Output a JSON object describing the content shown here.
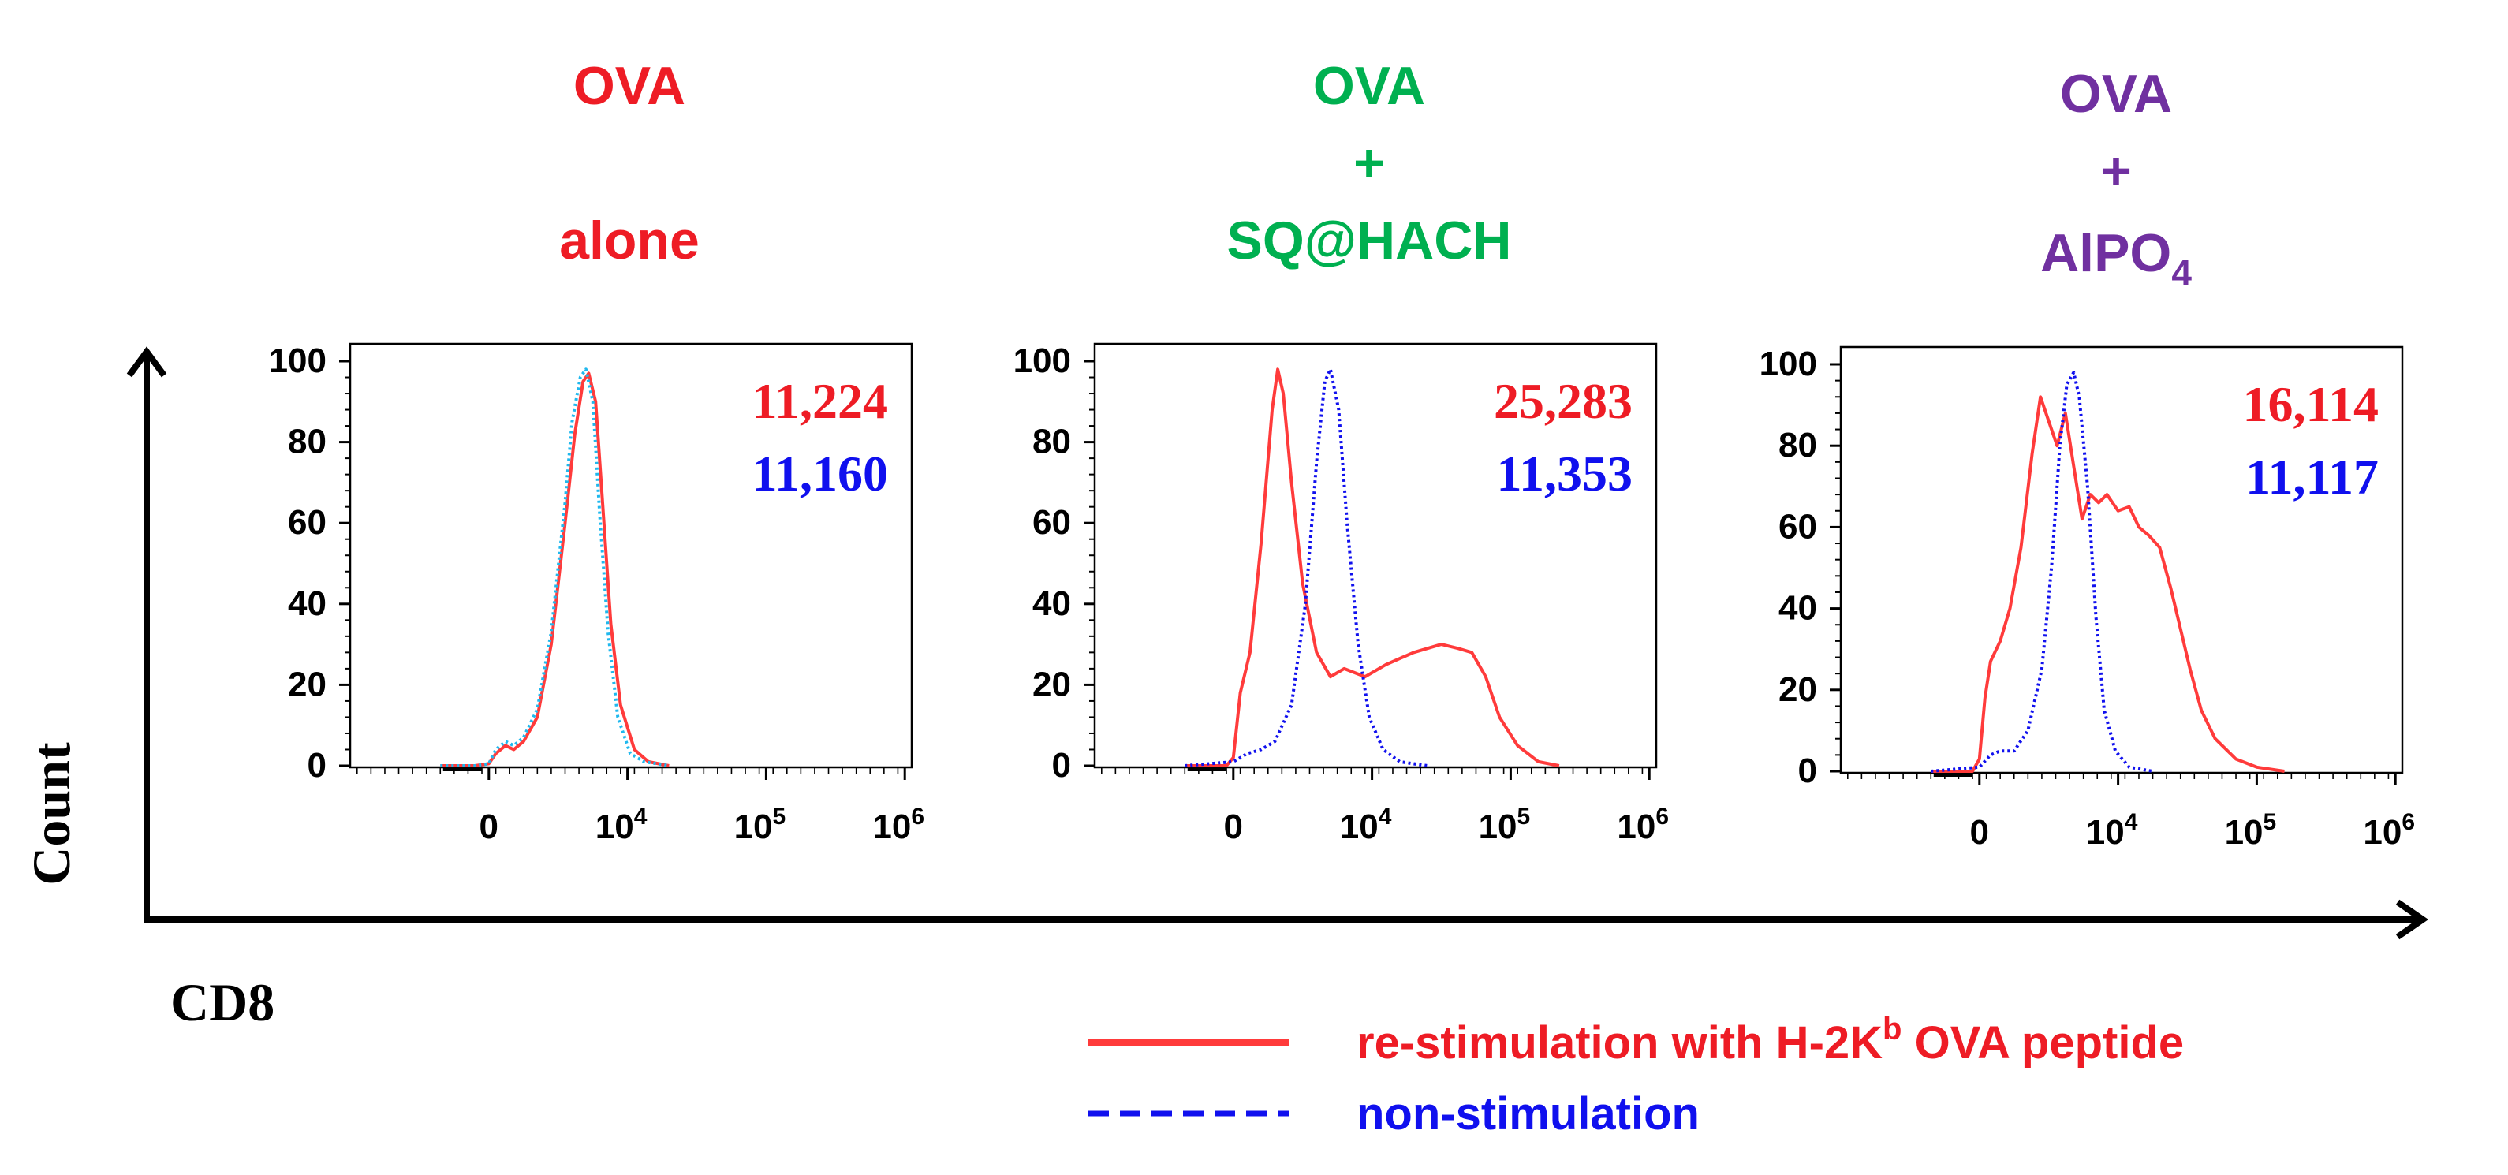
{
  "figure": {
    "y_axis_label": "Count",
    "x_axis_label": "CD8",
    "legend": {
      "stimulated_label": "re-stimulation with H-2K",
      "stimulated_superscript": "b",
      "stimulated_suffix": " OVA peptide",
      "unstimulated_label": "non-stimulation"
    }
  },
  "colors": {
    "stimulated": "#ff3b3b",
    "unstimulated": "#1010ee",
    "panel1_title": "#ee1c25",
    "panel2_title": "#00b050",
    "panel3_title": "#7030a0",
    "panel1_unstim_line": "#1fb8ee"
  },
  "chart_data": [
    {
      "type": "histogram",
      "panel_title_lines": [
        "OVA",
        "alone"
      ],
      "xlabel": "CD8",
      "ylabel": "Count",
      "y_ticks": [
        "0",
        "20",
        "40",
        "60",
        "80",
        "100"
      ],
      "x_ticks": [
        {
          "base": "0",
          "exp": ""
        },
        {
          "base": "10",
          "exp": "4"
        },
        {
          "base": "10",
          "exp": "5"
        },
        {
          "base": "10",
          "exp": "6"
        }
      ],
      "ylim": [
        0,
        100
      ],
      "mfi_stimulated": "11,224",
      "mfi_unstimulated": "11,160",
      "series": [
        {
          "name": "re-stimulation",
          "style": "solid",
          "x": [
            -0.35,
            -0.1,
            0.0,
            0.05,
            0.12,
            0.18,
            0.25,
            0.35,
            0.45,
            0.55,
            0.62,
            0.68,
            0.72,
            0.77,
            0.82,
            0.88,
            0.95,
            1.05,
            1.15,
            1.3
          ],
          "y": [
            0,
            0,
            0.5,
            3,
            5,
            4,
            6,
            12,
            30,
            60,
            82,
            95,
            97,
            90,
            65,
            35,
            15,
            4,
            1,
            0
          ]
        },
        {
          "name": "non-stimulation",
          "style": "dotted",
          "x": [
            -0.35,
            -0.1,
            0.0,
            0.05,
            0.12,
            0.18,
            0.25,
            0.35,
            0.45,
            0.55,
            0.6,
            0.66,
            0.7,
            0.75,
            0.8,
            0.86,
            0.93,
            1.02,
            1.12,
            1.3
          ],
          "y": [
            0,
            0,
            0.5,
            4,
            6,
            5,
            7,
            14,
            33,
            65,
            85,
            96,
            98,
            90,
            62,
            33,
            12,
            3,
            1,
            0
          ]
        }
      ]
    },
    {
      "type": "histogram",
      "panel_title_lines": [
        "OVA",
        "+",
        "SQ@HACH"
      ],
      "xlabel": "CD8",
      "ylabel": "Count",
      "y_ticks": [
        "0",
        "20",
        "40",
        "60",
        "80",
        "100"
      ],
      "x_ticks": [
        {
          "base": "0",
          "exp": ""
        },
        {
          "base": "10",
          "exp": "4"
        },
        {
          "base": "10",
          "exp": "5"
        },
        {
          "base": "10",
          "exp": "6"
        }
      ],
      "ylim": [
        0,
        100
      ],
      "mfi_stimulated": "25,283",
      "mfi_unstimulated": "11,353",
      "series": [
        {
          "name": "re-stimulation",
          "style": "solid",
          "x": [
            -0.35,
            -0.05,
            0.0,
            0.05,
            0.12,
            0.2,
            0.28,
            0.32,
            0.36,
            0.42,
            0.5,
            0.6,
            0.7,
            0.8,
            0.95,
            1.1,
            1.3,
            1.5,
            1.62,
            1.72,
            1.82,
            1.92,
            2.05,
            2.2,
            2.35
          ],
          "y": [
            0,
            0,
            2,
            18,
            28,
            55,
            88,
            98,
            92,
            70,
            45,
            28,
            22,
            24,
            22,
            25,
            28,
            30,
            29,
            28,
            22,
            12,
            5,
            1,
            0
          ]
        },
        {
          "name": "non-stimulation",
          "style": "dotted",
          "x": [
            -0.35,
            0.0,
            0.1,
            0.2,
            0.3,
            0.42,
            0.52,
            0.6,
            0.66,
            0.7,
            0.76,
            0.82,
            0.9,
            0.98,
            1.08,
            1.2,
            1.4
          ],
          "y": [
            0,
            1,
            3,
            4,
            6,
            15,
            40,
            75,
            95,
            98,
            88,
            60,
            30,
            12,
            4,
            1,
            0
          ]
        }
      ]
    },
    {
      "type": "histogram",
      "panel_title_lines": [
        "OVA",
        "+",
        "AlPO",
        "4"
      ],
      "xlabel": "CD8",
      "ylabel": "Count",
      "y_ticks": [
        "0",
        "20",
        "40",
        "60",
        "80",
        "100"
      ],
      "x_ticks": [
        {
          "base": "0",
          "exp": ""
        },
        {
          "base": "10",
          "exp": "4"
        },
        {
          "base": "10",
          "exp": "5"
        },
        {
          "base": "10",
          "exp": "6"
        }
      ],
      "ylim": [
        0,
        100
      ],
      "mfi_stimulated": "16,114",
      "mfi_unstimulated": "11,117",
      "series": [
        {
          "name": "re-stimulation",
          "style": "solid",
          "x": [
            -0.35,
            -0.05,
            0.0,
            0.04,
            0.08,
            0.15,
            0.22,
            0.3,
            0.38,
            0.44,
            0.5,
            0.56,
            0.62,
            0.68,
            0.74,
            0.8,
            0.86,
            0.92,
            1.0,
            1.08,
            1.15,
            1.22,
            1.3,
            1.38,
            1.45,
            1.52,
            1.6,
            1.7,
            1.85,
            2.0,
            2.2
          ],
          "y": [
            0,
            0,
            3,
            18,
            27,
            32,
            40,
            55,
            78,
            92,
            86,
            80,
            88,
            75,
            62,
            68,
            66,
            68,
            64,
            65,
            60,
            58,
            55,
            45,
            35,
            25,
            15,
            8,
            3,
            1,
            0
          ]
        },
        {
          "name": "non-stimulation",
          "style": "dotted",
          "x": [
            -0.35,
            0.0,
            0.08,
            0.15,
            0.25,
            0.35,
            0.45,
            0.52,
            0.58,
            0.63,
            0.68,
            0.72,
            0.78,
            0.84,
            0.9,
            0.98,
            1.08,
            1.25
          ],
          "y": [
            0,
            1,
            4,
            5,
            5,
            10,
            25,
            50,
            80,
            95,
            98,
            92,
            70,
            38,
            15,
            5,
            1,
            0
          ]
        }
      ]
    }
  ]
}
